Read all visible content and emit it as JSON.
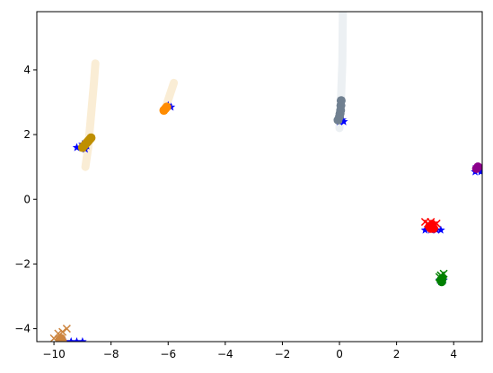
{
  "chart_data": {
    "type": "scatter",
    "title": "",
    "xlabel": "",
    "ylabel": "",
    "xlim": [
      -10.6,
      5.0
    ],
    "ylim": [
      -4.4,
      5.8
    ],
    "grid": false,
    "legend": "none",
    "xticks": [
      {
        "value": -10,
        "label": "−10"
      },
      {
        "value": -8,
        "label": "−8"
      },
      {
        "value": -6,
        "label": "−6"
      },
      {
        "value": -4,
        "label": "−4"
      },
      {
        "value": -2,
        "label": "−2"
      },
      {
        "value": 0,
        "label": "0"
      },
      {
        "value": 2,
        "label": "2"
      },
      {
        "value": 4,
        "label": "4"
      }
    ],
    "yticks": [
      {
        "value": -4,
        "label": "−4"
      },
      {
        "value": -2,
        "label": "−2"
      },
      {
        "value": 0,
        "label": "0"
      },
      {
        "value": 2,
        "label": "2"
      },
      {
        "value": 4,
        "label": "4"
      }
    ],
    "trails": [
      {
        "color": "#f5deb3",
        "points": [
          [
            -8.9,
            1.0
          ],
          [
            -8.8,
            1.6
          ],
          [
            -8.7,
            2.6
          ],
          [
            -8.6,
            3.6
          ],
          [
            -8.55,
            4.2
          ]
        ]
      },
      {
        "color": "#f5deb3",
        "points": [
          [
            -6.1,
            2.8
          ],
          [
            -5.95,
            3.2
          ],
          [
            -5.8,
            3.6
          ]
        ]
      },
      {
        "color": "#dde3ea",
        "points": [
          [
            0.0,
            2.2
          ],
          [
            0.05,
            3.0
          ],
          [
            0.1,
            4.2
          ],
          [
            0.12,
            5.8
          ]
        ]
      }
    ],
    "series": [
      {
        "color": "#0000ff",
        "marker": "star",
        "points": [
          [
            -9.2,
            1.6
          ],
          [
            -9.0,
            1.7
          ],
          [
            -8.9,
            1.55
          ],
          [
            -8.85,
            1.65
          ]
        ]
      },
      {
        "color": "#bf8f00",
        "marker": "circle",
        "points": [
          [
            -9.0,
            1.6
          ],
          [
            -8.95,
            1.65
          ],
          [
            -8.9,
            1.7
          ],
          [
            -8.85,
            1.75
          ],
          [
            -8.8,
            1.8
          ],
          [
            -8.75,
            1.85
          ],
          [
            -8.7,
            1.9
          ]
        ]
      },
      {
        "color": "#0000ff",
        "marker": "star",
        "points": [
          [
            -6.0,
            2.9
          ],
          [
            -5.9,
            2.85
          ]
        ]
      },
      {
        "color": "#ff8c00",
        "marker": "circle",
        "points": [
          [
            -6.15,
            2.75
          ],
          [
            -6.1,
            2.8
          ],
          [
            -6.05,
            2.85
          ]
        ]
      },
      {
        "color": "#0000ff",
        "marker": "star",
        "points": [
          [
            0.0,
            2.4
          ],
          [
            0.1,
            2.45
          ],
          [
            0.15,
            2.4
          ]
        ]
      },
      {
        "color": "#708090",
        "marker": "circle",
        "points": [
          [
            -0.05,
            2.45
          ],
          [
            0.0,
            2.55
          ],
          [
            0.02,
            2.65
          ],
          [
            0.04,
            2.75
          ],
          [
            0.05,
            2.9
          ],
          [
            0.06,
            3.05
          ]
        ]
      },
      {
        "color": "#0000ff",
        "marker": "star",
        "points": [
          [
            4.75,
            0.85
          ],
          [
            4.85,
            0.9
          ],
          [
            4.95,
            0.85
          ],
          [
            4.8,
            1.0
          ]
        ]
      },
      {
        "color": "#8b008b",
        "marker": "circle",
        "points": [
          [
            4.8,
            0.95
          ],
          [
            4.85,
            1.0
          ]
        ]
      },
      {
        "color": "#0000ff",
        "marker": "star",
        "points": [
          [
            3.0,
            -0.95
          ],
          [
            3.2,
            -0.95
          ],
          [
            3.4,
            -0.95
          ],
          [
            3.55,
            -0.95
          ]
        ]
      },
      {
        "color": "#ff0000",
        "marker": "x",
        "points": [
          [
            3.0,
            -0.7
          ],
          [
            3.1,
            -0.75
          ],
          [
            3.2,
            -0.7
          ],
          [
            3.3,
            -0.8
          ],
          [
            3.4,
            -0.75
          ]
        ]
      },
      {
        "color": "#ff0000",
        "marker": "circle",
        "points": [
          [
            3.15,
            -0.85
          ],
          [
            3.25,
            -0.8
          ],
          [
            3.3,
            -0.9
          ],
          [
            3.2,
            -0.9
          ]
        ]
      },
      {
        "color": "#0000ff",
        "marker": "star",
        "points": [
          [
            3.5,
            -2.5
          ],
          [
            3.65,
            -2.5
          ],
          [
            3.55,
            -2.55
          ]
        ]
      },
      {
        "color": "#008000",
        "marker": "x",
        "points": [
          [
            3.55,
            -2.35
          ],
          [
            3.65,
            -2.3
          ],
          [
            3.5,
            -2.4
          ]
        ]
      },
      {
        "color": "#008000",
        "marker": "circle",
        "points": [
          [
            3.55,
            -2.5
          ],
          [
            3.6,
            -2.45
          ],
          [
            3.58,
            -2.55
          ]
        ]
      },
      {
        "color": "#0000ff",
        "marker": "star",
        "points": [
          [
            -9.6,
            -4.4
          ],
          [
            -9.4,
            -4.4
          ],
          [
            -9.2,
            -4.4
          ],
          [
            -9.0,
            -4.4
          ]
        ]
      },
      {
        "color": "#cd853f",
        "marker": "x",
        "points": [
          [
            -10.0,
            -4.3
          ],
          [
            -9.85,
            -4.15
          ],
          [
            -9.7,
            -4.1
          ],
          [
            -9.55,
            -4.0
          ]
        ]
      },
      {
        "color": "#cd853f",
        "marker": "circle",
        "points": [
          [
            -9.8,
            -4.35
          ],
          [
            -9.75,
            -4.3
          ],
          [
            -9.7,
            -4.4
          ]
        ]
      }
    ]
  }
}
